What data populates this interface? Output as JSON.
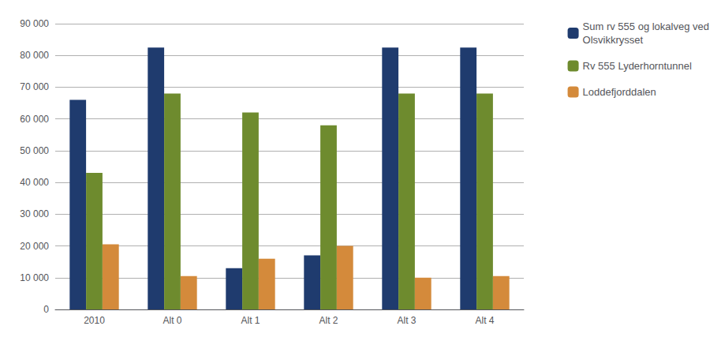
{
  "chart_data": {
    "type": "bar",
    "categories": [
      "2010",
      "Alt 0",
      "Alt 1",
      "Alt 2",
      "Alt 3",
      "Alt 4"
    ],
    "series": [
      {
        "name": "Sum rv 555 og lokalveg ved\nOlsvikkrysset",
        "color": "#1F3B6E",
        "values": [
          66000,
          82500,
          13000,
          17000,
          82500,
          82500
        ]
      },
      {
        "name": "Rv 555 Lyderhorntunnel",
        "color": "#6E8B2E",
        "values": [
          43000,
          68000,
          62000,
          58000,
          68000,
          68000
        ]
      },
      {
        "name": "Loddefjorddalen",
        "color": "#D48A3B",
        "values": [
          20500,
          10500,
          16000,
          20000,
          10000,
          10500
        ]
      }
    ],
    "ylim": [
      0,
      90000
    ],
    "yticks": [
      0,
      {
        "value": 10000,
        "label": "10 000"
      },
      {
        "value": 20000,
        "label": "20 000"
      },
      {
        "value": 30000,
        "label": "30 000"
      },
      {
        "value": 40000,
        "label": "40 000"
      },
      {
        "value": 50000,
        "label": "50 000"
      },
      {
        "value": 60000,
        "label": "60 000"
      },
      {
        "value": 70000,
        "label": "70 000"
      },
      {
        "value": 80000,
        "label": "80 000"
      },
      {
        "value": 90000,
        "label": "90 000"
      }
    ],
    "grid": true,
    "legend": "upper right"
  }
}
